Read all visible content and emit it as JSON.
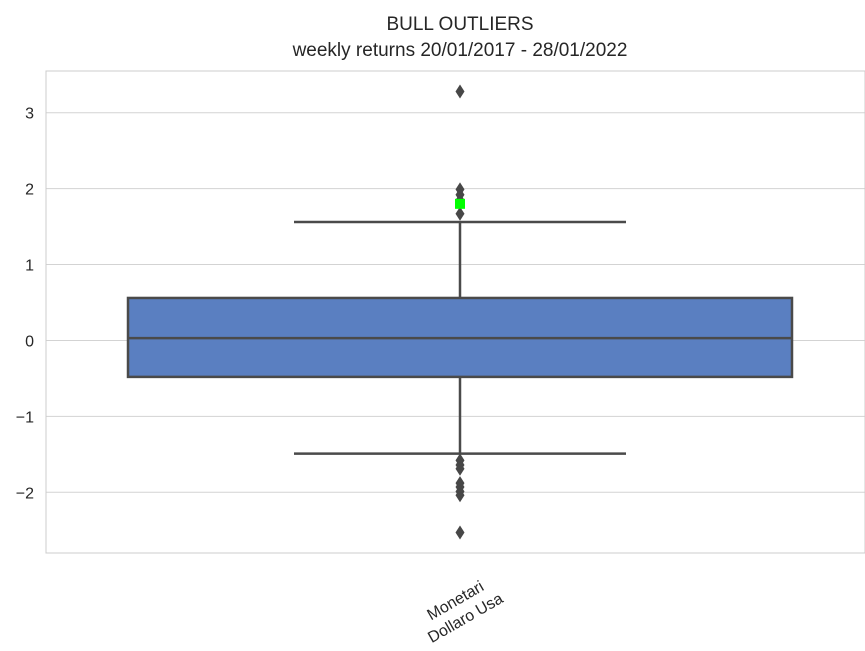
{
  "chart_data": {
    "type": "box",
    "title": "BULL OUTLIERS",
    "subtitle": "weekly returns 20/01/2017 - 28/01/2022",
    "xlabel": "",
    "ylabel": "",
    "ylim": [
      -2.8,
      3.55
    ],
    "yticks": [
      3,
      2,
      1,
      0,
      -1,
      -2
    ],
    "ytick_labels": [
      "3",
      "2",
      "1",
      "0",
      "−1",
      "−2"
    ],
    "grid": true,
    "categories": [
      {
        "label_line1": "Monetari",
        "label_line2": "Dollaro Usa"
      }
    ],
    "boxes": [
      {
        "q1": -0.48,
        "median": 0.03,
        "q3": 0.56,
        "whisker_low": -1.49,
        "whisker_high": 1.56,
        "outliers": [
          3.28,
          1.99,
          1.92,
          1.85,
          1.67,
          -1.58,
          -1.64,
          -1.69,
          -1.88,
          -1.93,
          -1.99,
          -2.04,
          -2.53
        ],
        "highlight": 1.8
      }
    ],
    "colors": {
      "box_fill": "#5a7fc1",
      "box_edge": "#4a4a4a",
      "grid": "#d3d3d3",
      "frame": "#cccccc",
      "highlight": "#00ff00",
      "outlier": "#474747"
    }
  }
}
